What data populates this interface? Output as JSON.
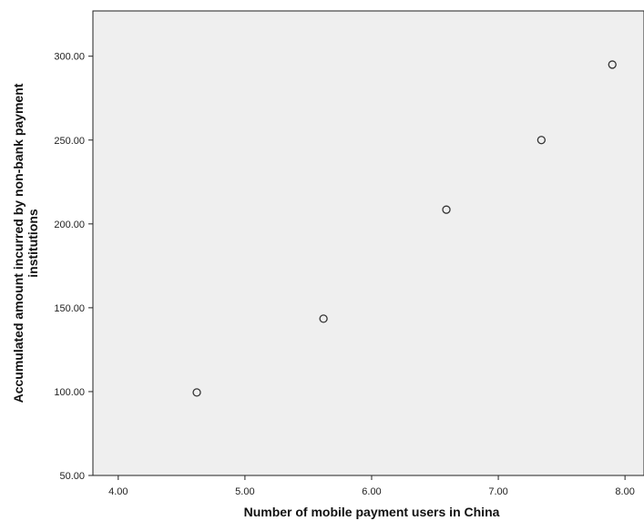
{
  "chart_data": {
    "type": "scatter",
    "title": "",
    "xlabel": "Number of mobile payment users in China",
    "ylabel_lines": [
      "Accumulated amount incurred by non-bank payment",
      "institutions"
    ],
    "xlim": [
      3.8,
      8.15
    ],
    "ylim": [
      50,
      327
    ],
    "x_ticks": [
      4,
      5,
      6,
      7,
      8
    ],
    "x_tick_labels": [
      "4.00",
      "5.00",
      "6.00",
      "7.00",
      "8.00"
    ],
    "y_ticks": [
      50,
      100,
      150,
      200,
      250,
      300
    ],
    "y_tick_labels": [
      "50.00",
      "100.00",
      "150.00",
      "200.00",
      "250.00",
      "300.00"
    ],
    "points": [
      {
        "x": 4.62,
        "y": 99.5
      },
      {
        "x": 5.62,
        "y": 143.5
      },
      {
        "x": 6.59,
        "y": 208.5
      },
      {
        "x": 7.34,
        "y": 250
      },
      {
        "x": 7.9,
        "y": 295
      }
    ],
    "grid": false,
    "legend": "none",
    "colors": {
      "plot_background": "#efefef",
      "axis": "#222222",
      "marker_stroke": "#333333"
    }
  }
}
